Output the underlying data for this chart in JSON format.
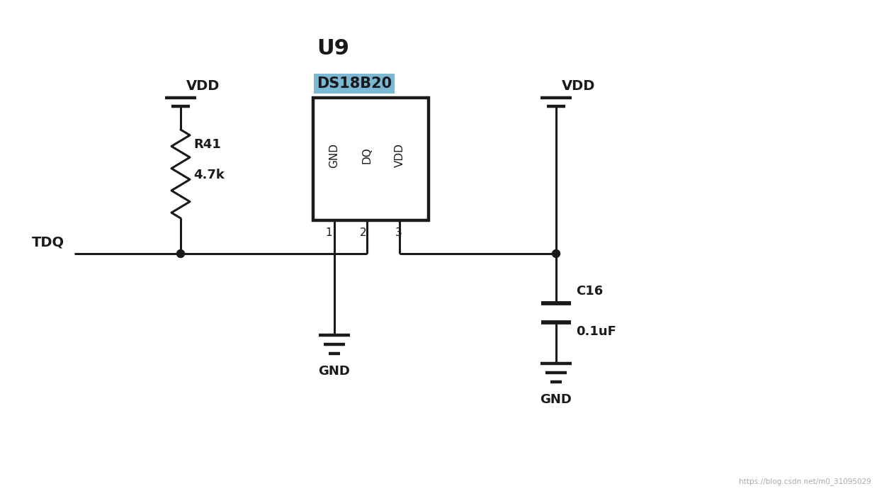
{
  "bg_color": "#ffffff",
  "line_color": "#1a1a1a",
  "label_color": "#8B4513",
  "chip_label_bg": "#7ab8d4",
  "chip_label_color": "#1a1a1a",
  "line_width": 2.2,
  "resistor_label": "R41",
  "resistor_value": "4.7k",
  "cap_label": "C16",
  "cap_value": "0.1uF",
  "tdq_label": "TDQ",
  "vdd_label": "VDD",
  "gnd_label": "GND",
  "pin_labels": [
    "GND",
    "DQ",
    "VDD"
  ],
  "pin_nums": [
    "1",
    "2",
    "3"
  ],
  "chip_title": "U9",
  "chip_name": "DS18B20",
  "watermark": "https://blog.csdn.net/m0_31095029",
  "figsize": [
    12.38,
    6.93
  ],
  "dpi": 100,
  "xlim": [
    0,
    12.38
  ],
  "ylim": [
    0,
    6.93
  ]
}
